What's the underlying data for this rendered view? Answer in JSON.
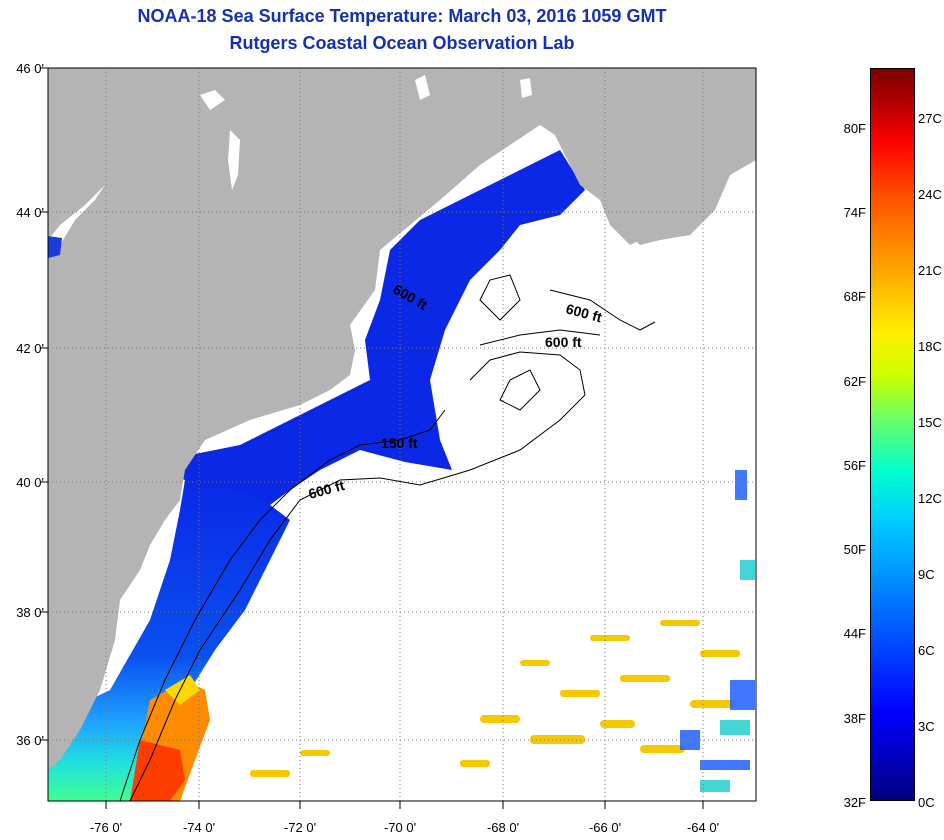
{
  "header": {
    "title": "NOAA-18 Sea Surface Temperature:  March 03, 2016 1059 GMT",
    "subtitle": "Rutgers Coastal Ocean Observation Lab"
  },
  "map": {
    "lat_labels": [
      "46 0'",
      "44 0'",
      "42 0'",
      "40 0'",
      "38 0'",
      "36 0'"
    ],
    "lon_labels": [
      "-76 0'",
      "-74 0'",
      "-72 0'",
      "-70 0'",
      "-68 0'",
      "-66 0'",
      "-64 0'"
    ],
    "contour_labels": [
      "600 ft",
      "600 ft",
      "600 ft",
      "150 ft",
      "600 ft"
    ],
    "colors": {
      "land": "#b4b4b4",
      "cold_water": "#0a28e6",
      "warm_water": "#ff8c00"
    }
  },
  "colorbar": {
    "fahrenheit_labels": [
      "80F",
      "74F",
      "68F",
      "62F",
      "56F",
      "50F",
      "44F",
      "38F",
      "32F"
    ],
    "celsius_labels": [
      "27C",
      "24C",
      "21C",
      "18C",
      "15C",
      "12C",
      "9C",
      "6C",
      "3C",
      "0C"
    ]
  }
}
